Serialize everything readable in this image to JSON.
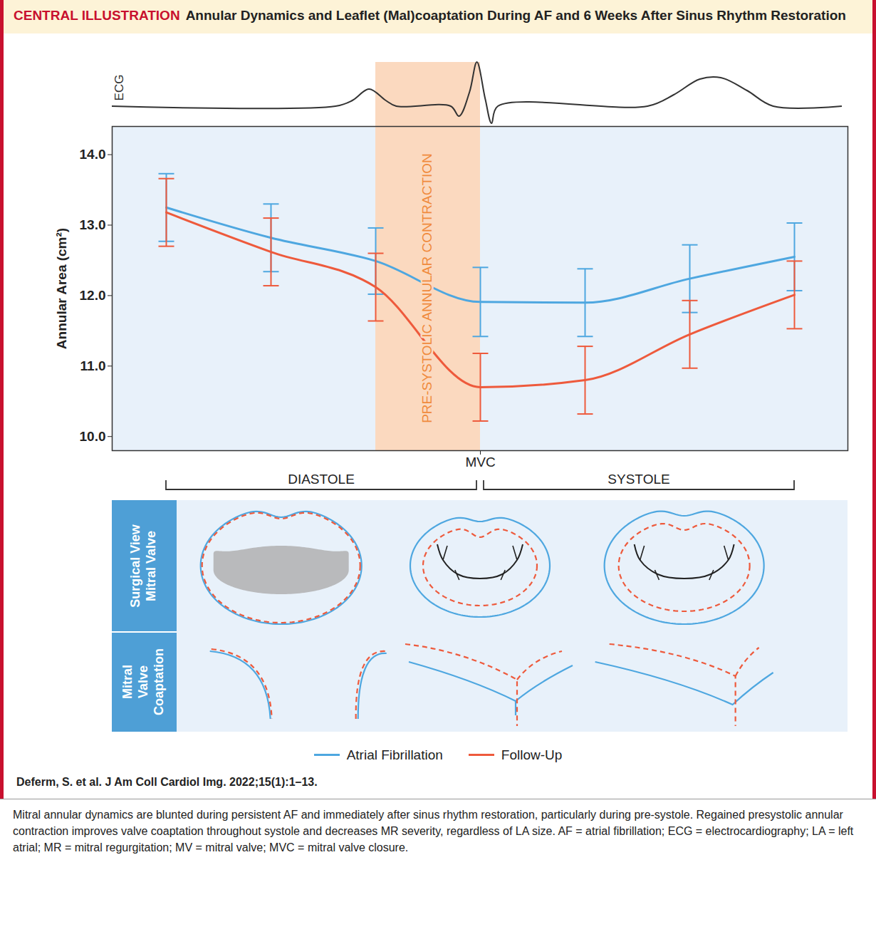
{
  "chart_data": {
    "type": "line",
    "title_prefix": "CENTRAL ILLUSTRATION",
    "title": "Annular Dynamics and Leaflet (Mal)coaptation During AF and 6 Weeks After Sinus Rhythm Restoration",
    "ecg_label": "ECG",
    "categories": [
      null,
      null,
      null,
      "MVC",
      null,
      null,
      null
    ],
    "series": [
      {
        "name": "Atrial Fibrillation",
        "color": "#4ea7e0",
        "line_style": "solid",
        "values": [
          13.25,
          12.82,
          12.49,
          11.91,
          11.9,
          12.24,
          12.55
        ],
        "error": [
          0.48,
          0.48,
          0.47,
          0.49,
          0.48,
          0.48,
          0.48
        ]
      },
      {
        "name": "Follow-Up",
        "color": "#ee5a3c",
        "line_style": "solid",
        "values": [
          13.18,
          12.62,
          12.12,
          10.7,
          10.8,
          11.45,
          12.01
        ],
        "error": [
          0.48,
          0.48,
          0.48,
          0.48,
          0.48,
          0.48,
          0.48
        ]
      }
    ],
    "y_label": "Annular Area (cm²)",
    "ylim": [
      9.8,
      14.4
    ],
    "yticks": [
      {
        "value": 10,
        "label": "10.0"
      },
      {
        "value": 11,
        "label": "11.0"
      },
      {
        "value": 12,
        "label": "12.0"
      },
      {
        "value": 13,
        "label": "13.0"
      },
      {
        "value": 14,
        "label": "14.0"
      }
    ],
    "grid": false,
    "legend": "bottom",
    "annotations": [
      {
        "text": "PRE-SYSTOLIC ANNULAR CONTRACTION",
        "span": [
          2,
          3
        ]
      }
    ],
    "phases": [
      {
        "label": "DIASTOLE",
        "span": [
          0,
          3
        ]
      },
      {
        "label": "SYSTOLE",
        "span": [
          3,
          6
        ]
      }
    ],
    "diagram_rows": [
      "Surgical View Mitral Valve",
      "Mitral Valve Coaptation"
    ],
    "source": "Deferm, S. et al. J Am Coll Cardiol Img. 2022;15(1):1–13.",
    "caption": "Mitral annular dynamics are blunted during persistent AF and immediately after sinus rhythm restoration, particularly during pre-systole. Regained presystolic annular contraction improves valve coaptation throughout systole and decreases MR severity, regardless of LA size. AF = atrial fibrillation; ECG = electrocardiography; LA = left atrial; MR = mitral regurgitation; MV = mitral valve; MVC = mitral valve closure."
  }
}
